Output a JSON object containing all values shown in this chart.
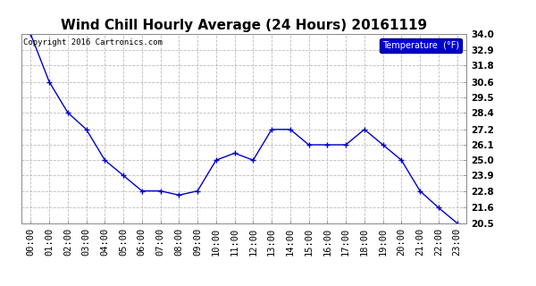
{
  "title": "Wind Chill Hourly Average (24 Hours) 20161119",
  "copyright_text": "Copyright 2016 Cartronics.com",
  "legend_label": "Temperature  (°F)",
  "x_labels": [
    "00:00",
    "01:00",
    "02:00",
    "03:00",
    "04:00",
    "05:00",
    "06:00",
    "07:00",
    "08:00",
    "09:00",
    "10:00",
    "11:00",
    "12:00",
    "13:00",
    "14:00",
    "15:00",
    "16:00",
    "17:00",
    "18:00",
    "19:00",
    "20:00",
    "21:00",
    "22:00",
    "23:00"
  ],
  "y_values": [
    34.0,
    30.6,
    28.4,
    27.2,
    25.0,
    23.9,
    22.8,
    22.8,
    22.5,
    22.8,
    25.0,
    25.5,
    25.0,
    27.2,
    27.2,
    26.1,
    26.1,
    26.1,
    27.2,
    26.1,
    25.0,
    22.8,
    21.6,
    20.5
  ],
  "ylim_min": 20.5,
  "ylim_max": 34.0,
  "yticks": [
    20.5,
    21.6,
    22.8,
    23.9,
    25.0,
    26.1,
    27.2,
    28.4,
    29.5,
    30.6,
    31.8,
    32.9,
    34.0
  ],
  "line_color": "#0000CC",
  "marker_color": "#0000CC",
  "background_color": "#ffffff",
  "plot_bg_color": "#ffffff",
  "grid_color": "#aaaaaa",
  "title_fontsize": 11,
  "legend_bg_color": "#0000CC",
  "legend_text_color": "#ffffff",
  "copyright_fontsize": 6.5,
  "axis_label_fontsize": 7.5,
  "title_fontweight": "bold"
}
